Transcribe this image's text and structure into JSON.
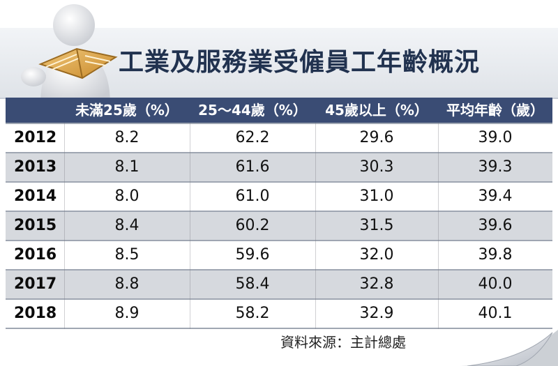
{
  "title": "工業及服務業受僱員工年齡概況",
  "headers": [
    "未滿25歲（%）",
    "25～44歲（%）",
    "45歲以上（%）",
    "平均年齡（歲）"
  ],
  "rows": [
    {
      "year": "2012",
      "under25": "8.2",
      "age25_44": "62.2",
      "over45": "29.6",
      "avg_age": "39.0"
    },
    {
      "year": "2013",
      "under25": "8.1",
      "age25_44": "61.6",
      "over45": "30.3",
      "avg_age": "39.3"
    },
    {
      "year": "2014",
      "under25": "8.0",
      "age25_44": "61.0",
      "over45": "31.0",
      "avg_age": "39.4"
    },
    {
      "year": "2015",
      "under25": "8.4",
      "age25_44": "60.2",
      "over45": "31.5",
      "avg_age": "39.6"
    },
    {
      "year": "2016",
      "under25": "8.5",
      "age25_44": "59.6",
      "over45": "32.0",
      "avg_age": "39.8"
    },
    {
      "year": "2017",
      "under25": "8.8",
      "age25_44": "58.4",
      "over45": "32.8",
      "avg_age": "40.0"
    },
    {
      "year": "2018",
      "under25": "8.9",
      "age25_44": "58.2",
      "over45": "32.9",
      "avg_age": "40.1"
    }
  ],
  "source": "資料來源：主計總處",
  "colors": {
    "header_bg": "#3a4c74",
    "title": "#21324f",
    "stripe": "#d6d9de"
  },
  "icons": {
    "figure": "reading-figure-icon",
    "curl": "page-curl-icon"
  }
}
